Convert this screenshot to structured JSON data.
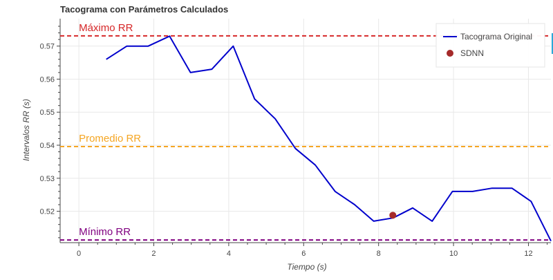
{
  "chart_data": {
    "type": "line",
    "title": "Tacograma con Parámetros Calculados",
    "xlabel": "Tiempo (s)",
    "ylabel": "Intervalos RR (s)",
    "xlim": [
      -0.5,
      12.6
    ],
    "ylim": [
      0.5105,
      0.5783
    ],
    "xticks": [
      0,
      2,
      4,
      6,
      8,
      10,
      12
    ],
    "yticks": [
      0.52,
      0.53,
      0.54,
      0.55,
      0.56,
      0.57
    ],
    "grid": true,
    "legend_position": "top-right",
    "series": [
      {
        "name": "Tacograma Original",
        "color": "#0000cc",
        "x": [
          0.73,
          1.28,
          1.85,
          2.42,
          2.98,
          3.55,
          4.12,
          4.69,
          5.24,
          5.78,
          6.31,
          6.84,
          7.36,
          7.87,
          8.39,
          8.91,
          9.43,
          9.97,
          10.51,
          11.03,
          11.56,
          12.07,
          12.6
        ],
        "y": [
          0.566,
          0.57,
          0.57,
          0.573,
          0.562,
          0.563,
          0.57,
          0.554,
          0.548,
          0.539,
          0.534,
          0.526,
          0.522,
          0.517,
          0.518,
          0.521,
          0.517,
          0.526,
          0.526,
          0.527,
          0.527,
          0.523,
          0.511
        ]
      }
    ],
    "points": [
      {
        "name": "SDNN",
        "color": "#a52a2a",
        "x": 8.38,
        "y": 0.5188
      }
    ],
    "hlines": [
      {
        "label": "Máximo RR",
        "value": 0.5731,
        "color": "#d62728"
      },
      {
        "label": "Promedio RR",
        "value": 0.5396,
        "color": "#f5a623"
      },
      {
        "label": "Mínimo RR",
        "value": 0.5113,
        "color": "#800080"
      }
    ]
  }
}
